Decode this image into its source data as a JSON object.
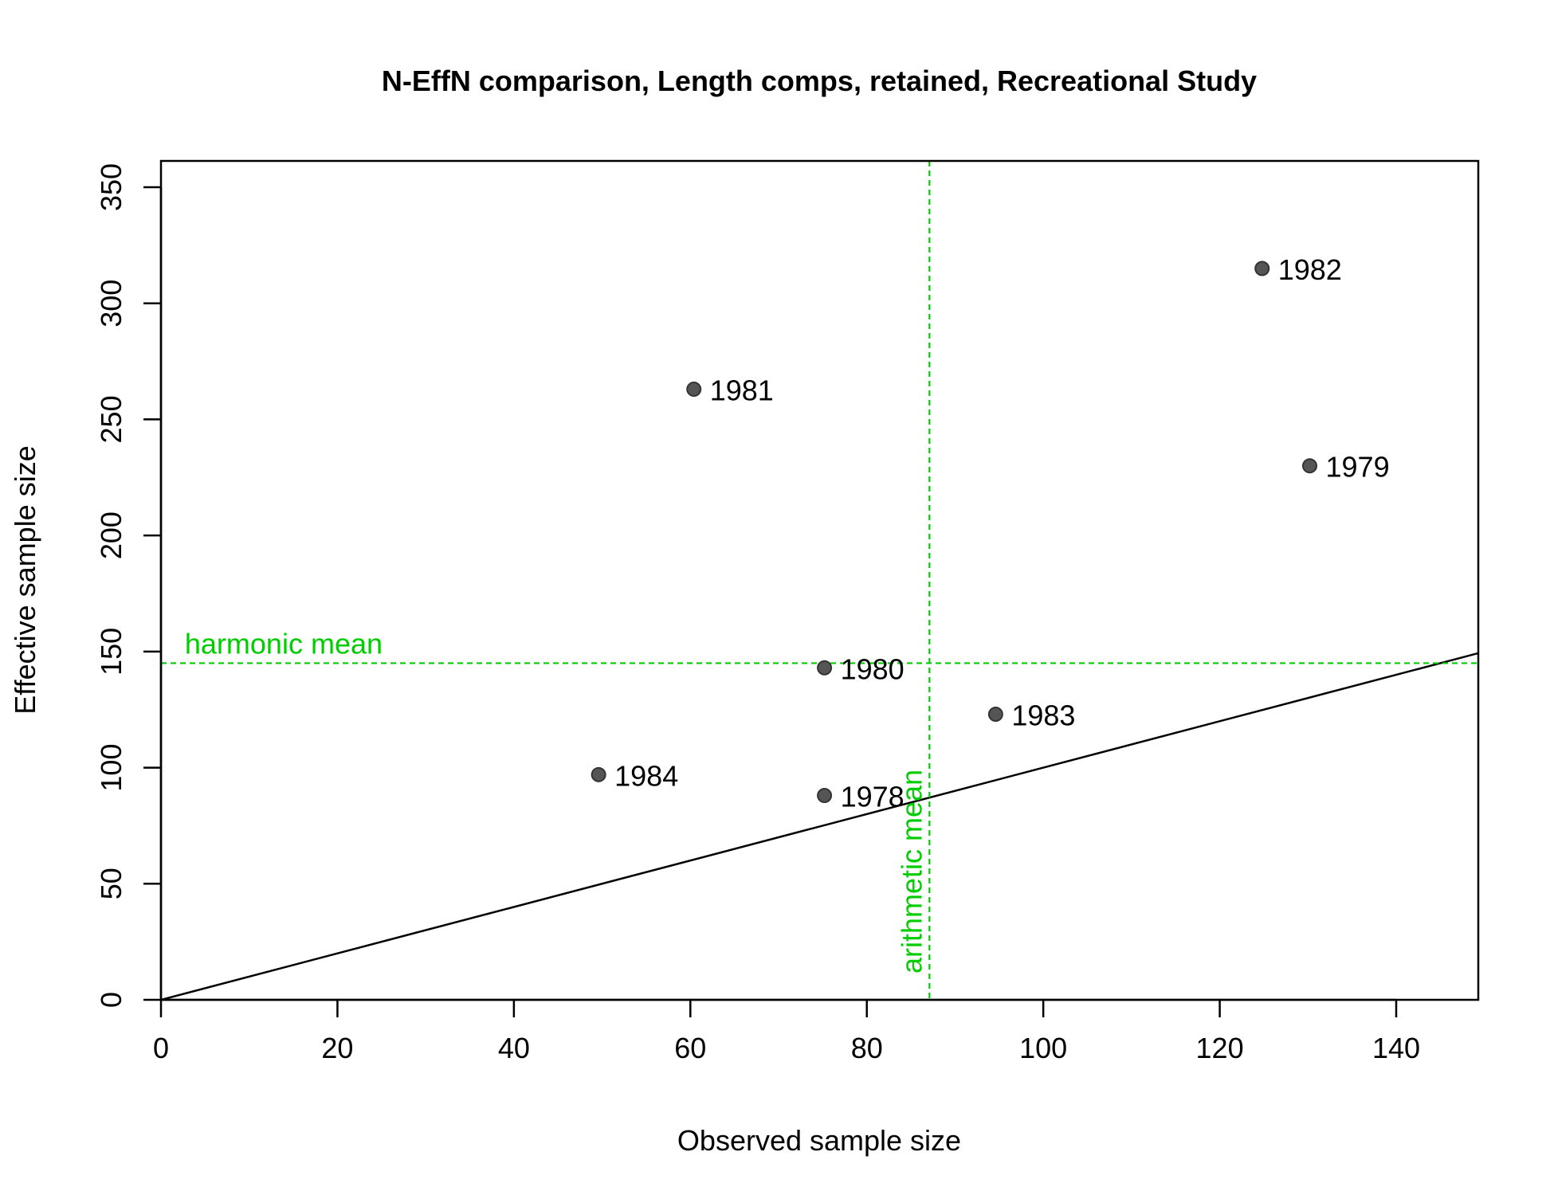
{
  "chart_data": {
    "type": "scatter",
    "title": "N-EffN comparison, Length comps, retained, Recreational Study",
    "xlabel": "Observed sample size",
    "ylabel": "Effective sample size",
    "xlim": [
      0,
      150
    ],
    "ylim": [
      0,
      350
    ],
    "xticks": [
      0,
      20,
      40,
      60,
      80,
      100,
      120,
      140
    ],
    "yticks": [
      0,
      50,
      100,
      150,
      200,
      250,
      300,
      350
    ],
    "grid": false,
    "points": [
      {
        "label": "1978",
        "x": 75.2,
        "y": 88
      },
      {
        "label": "1979",
        "x": 130.2,
        "y": 230
      },
      {
        "label": "1980",
        "x": 75.2,
        "y": 143
      },
      {
        "label": "1981",
        "x": 60.4,
        "y": 263
      },
      {
        "label": "1982",
        "x": 124.8,
        "y": 315
      },
      {
        "label": "1983",
        "x": 94.6,
        "y": 123
      },
      {
        "label": "1984",
        "x": 49.6,
        "y": 97
      }
    ],
    "reference_line": {
      "slope": 1,
      "intercept": 0
    },
    "harmonic_mean": {
      "label": "harmonic mean",
      "y": 145
    },
    "arithmetic_mean": {
      "label": "arithmetic mean",
      "x": 87.1
    },
    "colors": {
      "points": "#555555",
      "means": "#00cd00",
      "line": "#000000"
    }
  }
}
